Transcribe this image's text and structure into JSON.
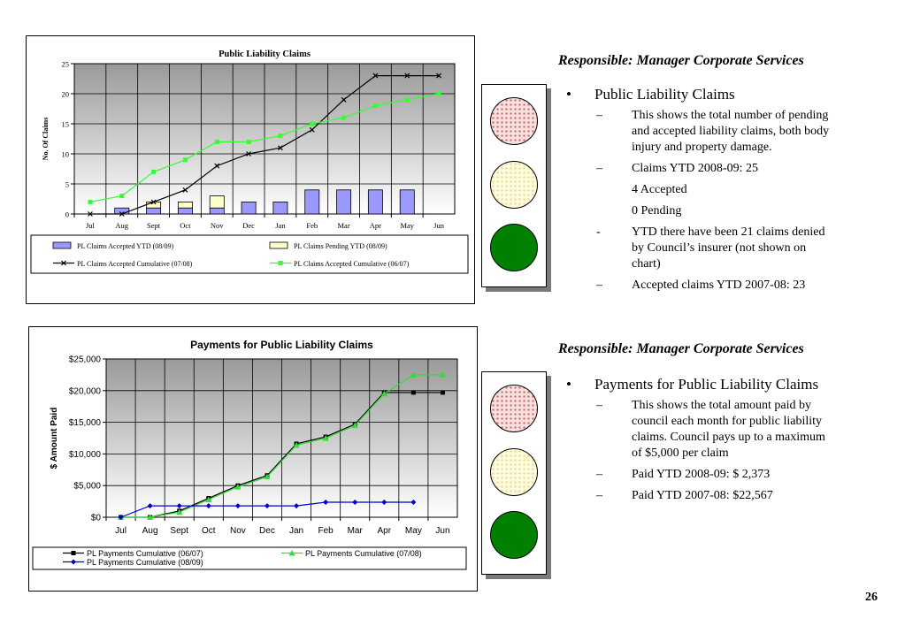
{
  "chart_data": [
    {
      "type": "bar",
      "title": "Public Liability Claims",
      "ylabel": "No. Of Claims",
      "xlabel": "",
      "categories": [
        "Jul",
        "Aug",
        "Sept",
        "Oct",
        "Nov",
        "Dec",
        "Jan",
        "Feb",
        "Mar",
        "Apr",
        "May",
        "Jun"
      ],
      "ylim": [
        0,
        25
      ],
      "yticks": [
        "0",
        "5",
        "10",
        "15",
        "20",
        "25"
      ],
      "grid": true,
      "legend_position": "bottom",
      "series": [
        {
          "name": "PL Claims Accepted YTD (08/09)",
          "kind": "bar-stack",
          "color": "#9999ff",
          "values": [
            0,
            1,
            1,
            1,
            1,
            2,
            2,
            4,
            4,
            4,
            4,
            null
          ]
        },
        {
          "name": "PL Claims Pending YTD (08/09)",
          "kind": "bar-stack",
          "color": "#ffffcc",
          "values": [
            0,
            0,
            1,
            1,
            2,
            0,
            0,
            0,
            0,
            0,
            0,
            null
          ]
        },
        {
          "name": "PL Claims Accepted Cumulative (07/08)",
          "kind": "line",
          "color": "#000000",
          "marker": "x",
          "values": [
            0,
            0,
            2,
            4,
            8,
            10,
            11,
            14,
            19,
            23,
            23,
            23
          ]
        },
        {
          "name": "PL Claims Accepted Cumulative (06/07)",
          "kind": "line",
          "color": "#33ff33",
          "marker": "square",
          "values": [
            2,
            3,
            7,
            9,
            12,
            12,
            13,
            15,
            16,
            18,
            19,
            20
          ]
        }
      ]
    },
    {
      "type": "line",
      "title": "Payments for Public Liability Claims",
      "ylabel": "$ Amount Paid",
      "xlabel": "",
      "categories": [
        "Jul",
        "Aug",
        "Sept",
        "Oct",
        "Nov",
        "Dec",
        "Jan",
        "Feb",
        "Mar",
        "Apr",
        "May",
        "Jun"
      ],
      "ylim": [
        0,
        25000
      ],
      "yticks": [
        "$0",
        "$5,000",
        "$10,000",
        "$15,000",
        "$20,000",
        "$25,000"
      ],
      "grid": true,
      "legend_position": "bottom",
      "series": [
        {
          "name": "PL Payments Cumulative (06/07)",
          "color": "#000000",
          "marker": "square",
          "values": [
            0,
            0,
            1000,
            3000,
            5000,
            6600,
            11600,
            12700,
            14700,
            19700,
            19700,
            19700
          ]
        },
        {
          "name": "PL Payments Cumulative (07/08)",
          "color": "#33dd33",
          "marker": "triangle",
          "values": [
            0,
            0,
            800,
            2800,
            4800,
            6400,
            11400,
            12500,
            14500,
            19500,
            22500,
            22500
          ]
        },
        {
          "name": "PL Payments Cumulative (08/09)",
          "color": "#0000cc",
          "marker": "diamond",
          "values": [
            0,
            1800,
            1800,
            1800,
            1800,
            1800,
            1800,
            2373,
            2373,
            2373,
            2373,
            null
          ]
        }
      ]
    }
  ],
  "section1": {
    "responsible": "Responsible: Manager Corporate Services",
    "bullet": "Public Liability Claims",
    "items": [
      {
        "mark": "–",
        "text": "This shows the total number of pending and accepted liability claims, both body injury and property damage."
      },
      {
        "mark": "–",
        "text": "Claims YTD 2008-09:  25"
      },
      {
        "mark": "",
        "text": "4 Accepted"
      },
      {
        "mark": "",
        "text": "0  Pending"
      },
      {
        "mark": "-",
        "text": "YTD there have been 21 claims denied by Council’s insurer (not shown on chart)"
      },
      {
        "mark": "–",
        "text": "Accepted claims YTD 2007-08: 23"
      }
    ]
  },
  "section2": {
    "responsible": "Responsible: Manager Corporate Services",
    "bullet": "Payments for Public Liability Claims",
    "items": [
      {
        "mark": "–",
        "text": "This shows the total amount paid by council each month for public liability claims.  Council pays up to a maximum of $5,000 per claim"
      },
      {
        "mark": "–",
        "text": "Paid YTD 2008-09:  $  2,373"
      },
      {
        "mark": "–",
        "text": "Paid YTD 2007-08:  $22,567"
      }
    ]
  },
  "bullet_glyph": "•",
  "page_number": "26"
}
